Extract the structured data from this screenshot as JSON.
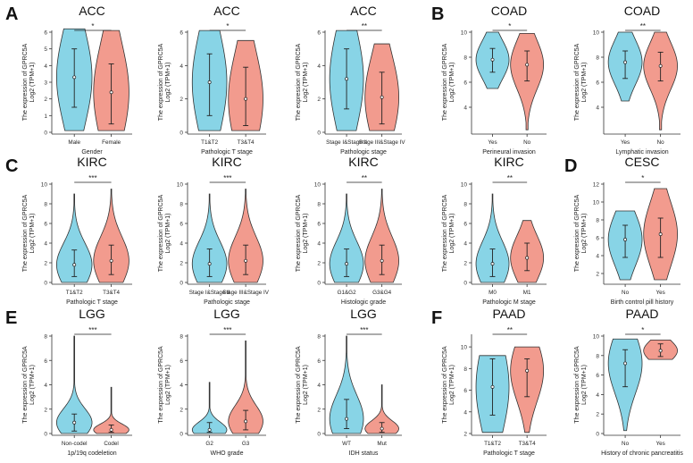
{
  "figure": {
    "panel_letters": [
      "A",
      "B",
      "C",
      "D",
      "E",
      "F"
    ],
    "colors": {
      "group1": "#88d4e6",
      "group2": "#f29b8e",
      "outline": "#333333",
      "axis": "#333333"
    }
  },
  "chart_data": [
    {
      "id": "A1",
      "type": "violin",
      "title": "ACC",
      "panel_letter": "A",
      "ylabel": "The expression of GPRC5A",
      "ylabel2": "Log2 (TPM+1)",
      "xlabel": "Gender",
      "categories": [
        "Male",
        "Female"
      ],
      "ylim": [
        0,
        6
      ],
      "yticks": [
        0,
        1,
        2,
        3,
        4,
        5,
        6
      ],
      "medians": [
        3.3,
        2.4
      ],
      "q1": [
        1.5,
        0.5
      ],
      "q3": [
        5.0,
        4.1
      ],
      "ranges": [
        [
          0.1,
          6.2
        ],
        [
          0.1,
          6.1
        ]
      ],
      "significance": "*"
    },
    {
      "id": "A2",
      "type": "violin",
      "title": "ACC",
      "ylabel": "The expression of GPRC5A",
      "ylabel2": "Log2 (TPM+1)",
      "xlabel": "Pathologic T stage",
      "categories": [
        "T1&T2",
        "T3&T4"
      ],
      "ylim": [
        0,
        6
      ],
      "yticks": [
        0,
        2,
        4,
        6
      ],
      "medians": [
        3.0,
        2.0
      ],
      "q1": [
        1.0,
        0.4
      ],
      "q3": [
        4.7,
        3.9
      ],
      "ranges": [
        [
          0.1,
          6.1
        ],
        [
          0.1,
          5.5
        ]
      ],
      "significance": "*"
    },
    {
      "id": "A3",
      "type": "violin",
      "title": "ACC",
      "ylabel": "The expression of GPRC5A",
      "ylabel2": "Log2 (TPM+1)",
      "xlabel": "Pathologic stage",
      "categories": [
        "Stage I&Stage II",
        "Stage III&Stage IV"
      ],
      "ylim": [
        0,
        6
      ],
      "yticks": [
        0,
        2,
        4,
        6
      ],
      "medians": [
        3.2,
        2.1
      ],
      "q1": [
        1.4,
        0.5
      ],
      "q3": [
        5.0,
        3.6
      ],
      "ranges": [
        [
          0.1,
          6.1
        ],
        [
          0.1,
          5.3
        ]
      ],
      "significance": "**"
    },
    {
      "id": "B1",
      "type": "violin",
      "title": "COAD",
      "panel_letter": "B",
      "ylabel": "The expression of GPRC5A",
      "ylabel2": "Log2 (TPM+1)",
      "xlabel": "Perineural invasion",
      "categories": [
        "Yes",
        "No"
      ],
      "ylim": [
        2,
        10
      ],
      "yticks": [
        4,
        6,
        8,
        10
      ],
      "medians": [
        7.8,
        7.4
      ],
      "q1": [
        6.8,
        6.1
      ],
      "q3": [
        8.7,
        8.5
      ],
      "ranges": [
        [
          5.5,
          10.0
        ],
        [
          2.2,
          9.9
        ]
      ],
      "significance": "*"
    },
    {
      "id": "B2",
      "type": "violin",
      "title": "COAD",
      "ylabel": "The expression of GPRC5A",
      "ylabel2": "Log2 (TPM+1)",
      "xlabel": "Lymphatic invasion",
      "categories": [
        "Yes",
        "No"
      ],
      "ylim": [
        2,
        10
      ],
      "yticks": [
        4,
        6,
        8,
        10
      ],
      "medians": [
        7.6,
        7.3
      ],
      "q1": [
        6.3,
        6.1
      ],
      "q3": [
        8.5,
        8.4
      ],
      "ranges": [
        [
          4.5,
          10.0
        ],
        [
          2.2,
          10.0
        ]
      ],
      "significance": "**"
    },
    {
      "id": "C1",
      "type": "violin",
      "title": "KIRC",
      "panel_letter": "C",
      "ylabel": "The expression of GPRC5A",
      "ylabel2": "Log2 (TPM+1)",
      "xlabel": "Pathologic T stage",
      "categories": [
        "T1&T2",
        "T3&T4"
      ],
      "ylim": [
        0,
        10
      ],
      "yticks": [
        0,
        2,
        4,
        6,
        8,
        10
      ],
      "medians": [
        1.8,
        2.2
      ],
      "q1": [
        0.6,
        0.8
      ],
      "q3": [
        3.3,
        3.8
      ],
      "ranges": [
        [
          0.0,
          9.0
        ],
        [
          0.0,
          9.5
        ]
      ],
      "significance": "***"
    },
    {
      "id": "C2",
      "type": "violin",
      "title": "KIRC",
      "ylabel": "The expression of GPRC5A",
      "ylabel2": "Log2 (TPM+1)",
      "xlabel": "Pathologic stage",
      "categories": [
        "Stage I&Stage II",
        "Stage III&Stage IV"
      ],
      "ylim": [
        0,
        10
      ],
      "yticks": [
        0,
        2,
        4,
        6,
        8,
        10
      ],
      "medians": [
        1.9,
        2.2
      ],
      "q1": [
        0.6,
        0.8
      ],
      "q3": [
        3.4,
        3.8
      ],
      "ranges": [
        [
          0.0,
          9.0
        ],
        [
          0.0,
          9.5
        ]
      ],
      "significance": "***"
    },
    {
      "id": "C3",
      "type": "violin",
      "title": "KIRC",
      "ylabel": "The expression of GPRC5A",
      "ylabel2": "Log2 (TPM+1)",
      "xlabel": "Histologic grade",
      "categories": [
        "G1&G2",
        "G3&G4"
      ],
      "ylim": [
        0,
        10
      ],
      "yticks": [
        0,
        2,
        4,
        6,
        8,
        10
      ],
      "medians": [
        1.9,
        2.2
      ],
      "q1": [
        0.6,
        0.8
      ],
      "q3": [
        3.4,
        3.8
      ],
      "ranges": [
        [
          0.0,
          9.0
        ],
        [
          0.0,
          9.5
        ]
      ],
      "significance": "**"
    },
    {
      "id": "C4",
      "type": "violin",
      "title": "KIRC",
      "ylabel": "The expression of GPRC5A",
      "ylabel2": "Log2 (TPM+1)",
      "xlabel": "Pathologic M stage",
      "categories": [
        "M0",
        "M1"
      ],
      "ylim": [
        0,
        10
      ],
      "yticks": [
        0,
        2,
        4,
        6,
        8,
        10
      ],
      "medians": [
        1.9,
        2.5
      ],
      "q1": [
        0.6,
        1.2
      ],
      "q3": [
        3.4,
        4.0
      ],
      "ranges": [
        [
          0.0,
          9.0
        ],
        [
          0.0,
          6.3
        ]
      ],
      "significance": "**"
    },
    {
      "id": "D1",
      "type": "violin",
      "title": "CESC",
      "panel_letter": "D",
      "ylabel": "The expression of GPRC5A",
      "ylabel2": "Log2 (TPM+1)",
      "xlabel": "Birth control pill history",
      "categories": [
        "No",
        "Yes"
      ],
      "ylim": [
        1,
        12
      ],
      "yticks": [
        2,
        4,
        6,
        8,
        10,
        12
      ],
      "medians": [
        5.8,
        6.4
      ],
      "q1": [
        3.8,
        3.8
      ],
      "q3": [
        7.4,
        8.2
      ],
      "ranges": [
        [
          1.3,
          9.0
        ],
        [
          1.3,
          11.5
        ]
      ],
      "significance": "*"
    },
    {
      "id": "E1",
      "type": "violin",
      "title": "LGG",
      "panel_letter": "E",
      "ylabel": "The expression of GPRC5A",
      "ylabel2": "Log2 (TPM+1)",
      "xlabel": "1p/19q codeletion",
      "categories": [
        "Non-codel",
        "Codel"
      ],
      "ylim": [
        0,
        8
      ],
      "yticks": [
        0,
        2,
        4,
        6,
        8
      ],
      "medians": [
        0.9,
        0.3
      ],
      "q1": [
        0.2,
        0.1
      ],
      "q3": [
        1.6,
        0.7
      ],
      "ranges": [
        [
          0.0,
          8.0
        ],
        [
          0.0,
          3.8
        ]
      ],
      "significance": "***"
    },
    {
      "id": "E2",
      "type": "violin",
      "title": "LGG",
      "ylabel": "The expression of GPRC5A",
      "ylabel2": "Log2 (TPM+1)",
      "xlabel": "WHO grade",
      "categories": [
        "G2",
        "G3"
      ],
      "ylim": [
        0,
        8
      ],
      "yticks": [
        0,
        2,
        4,
        6,
        8
      ],
      "medians": [
        0.3,
        1.0
      ],
      "q1": [
        0.1,
        0.3
      ],
      "q3": [
        0.9,
        1.9
      ],
      "ranges": [
        [
          0.0,
          4.2
        ],
        [
          0.0,
          7.6
        ]
      ],
      "significance": "***"
    },
    {
      "id": "E3",
      "type": "violin",
      "title": "LGG",
      "ylabel": "The expression of GPRC5A",
      "ylabel2": "Log2 (TPM+1)",
      "xlabel": "IDH status",
      "categories": [
        "WT",
        "Mut"
      ],
      "ylim": [
        0,
        8
      ],
      "yticks": [
        0,
        2,
        4,
        6,
        8
      ],
      "medians": [
        1.2,
        0.4
      ],
      "q1": [
        0.4,
        0.1
      ],
      "q3": [
        2.8,
        0.9
      ],
      "ranges": [
        [
          0.0,
          8.0
        ],
        [
          0.0,
          4.0
        ]
      ],
      "significance": "***"
    },
    {
      "id": "F1",
      "type": "violin",
      "title": "PAAD",
      "panel_letter": "F",
      "ylabel": "The expression of GPRC5A",
      "ylabel2": "Log2 (TPM+1)",
      "xlabel": "Pathologic T stage",
      "categories": [
        "T1&T2",
        "T3&T4"
      ],
      "ylim": [
        2,
        11
      ],
      "yticks": [
        2,
        4,
        6,
        8,
        10
      ],
      "medians": [
        6.3,
        7.8
      ],
      "q1": [
        3.7,
        5.4
      ],
      "q3": [
        8.9,
        8.9
      ],
      "ranges": [
        [
          2.1,
          9.2
        ],
        [
          2.1,
          10.0
        ]
      ],
      "significance": "**"
    },
    {
      "id": "F2",
      "type": "violin",
      "title": "PAAD",
      "ylabel": "The expression of GPRC5A",
      "ylabel2": "Log2 (TPM+1)",
      "xlabel": "History of chronic pancreatitis",
      "categories": [
        "No",
        "Yes"
      ],
      "ylim": [
        0,
        10
      ],
      "yticks": [
        0,
        2,
        4,
        6,
        8,
        10
      ],
      "medians": [
        7.2,
        8.5
      ],
      "q1": [
        4.8,
        7.9
      ],
      "q3": [
        8.6,
        9.2
      ],
      "ranges": [
        [
          0.3,
          9.7
        ],
        [
          7.6,
          9.6
        ]
      ],
      "significance": "*"
    }
  ]
}
